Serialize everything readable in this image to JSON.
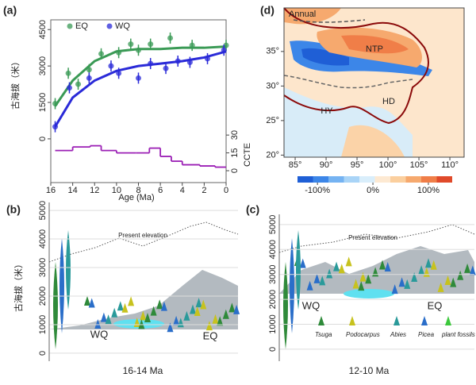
{
  "chart_data": {
    "type": "scatter",
    "panel": "(a)",
    "xlabel": "Age (Ma)",
    "ylabel": "古海拔（米）",
    "y2label": "CCTE",
    "xlim": [
      16,
      0
    ],
    "xticks": [
      16,
      14,
      12,
      10,
      8,
      6,
      4,
      2,
      0
    ],
    "ylim": [
      -1800,
      4900
    ],
    "yticks": [
      0,
      1500,
      3000,
      4500
    ],
    "y2lim": [
      -10,
      127
    ],
    "y2ticks": [
      0,
      15,
      30
    ],
    "series": [
      {
        "name": "EQ",
        "color": "#3a9a55",
        "x": [
          15.6,
          14.4,
          13.5,
          12.5,
          11.4,
          9.8,
          8.7,
          8,
          6.9,
          5.1,
          3.1,
          0
        ],
        "values": [
          1450,
          2700,
          2250,
          2850,
          3500,
          3550,
          3900,
          3650,
          3900,
          4150,
          3850,
          3850
        ],
        "fit": {
          "x": [
            15.6,
            14,
            12,
            10,
            8,
            6,
            4,
            2,
            0
          ],
          "values": [
            1350,
            2400,
            3200,
            3600,
            3700,
            3700,
            3750,
            3750,
            3800
          ]
        }
      },
      {
        "name": "WQ",
        "color": "#2a2ad8",
        "x": [
          15.6,
          14.3,
          12.5,
          10.5,
          9.8,
          8,
          6.9,
          5.5,
          4.4,
          3.3,
          1.7,
          0.2
        ],
        "values": [
          500,
          2100,
          2500,
          3000,
          2700,
          2500,
          3100,
          2900,
          3200,
          3150,
          3300,
          3650
        ],
        "fit": {
          "x": [
            15.6,
            14,
            12,
            10,
            8,
            6,
            4,
            2,
            0
          ],
          "values": [
            500,
            1700,
            2400,
            2800,
            3000,
            3100,
            3200,
            3350,
            3600
          ]
        }
      }
    ],
    "step": {
      "axis": "y2",
      "color": "#9b1fb5",
      "bins": [
        15.6,
        14,
        12.4,
        11.4,
        10,
        8.2,
        7,
        6,
        5,
        4,
        2.4,
        1,
        0
      ],
      "values": [
        17,
        20,
        21,
        17,
        15,
        15,
        19,
        12,
        8,
        5,
        4,
        3
      ]
    }
  },
  "map": {
    "label": "(d)",
    "title": "Annual",
    "regions": [
      "NTP",
      "HY",
      "HD"
    ],
    "xlim": [
      83.2,
      112.3
    ],
    "xticks": [
      {
        "value": 85,
        "label": "85°"
      },
      {
        "value": 90,
        "label": "90°"
      },
      {
        "value": 95,
        "label": "95°"
      },
      {
        "value": 100,
        "label": "100°"
      },
      {
        "value": 105,
        "label": "105°"
      },
      {
        "value": 110,
        "label": "110°"
      }
    ],
    "ylim": [
      19.7,
      41.3
    ],
    "yticks": [
      {
        "value": 20,
        "label": "20°"
      },
      {
        "value": 25,
        "label": "25°"
      },
      {
        "value": 30,
        "label": "30°"
      },
      {
        "value": 35,
        "label": "35°"
      }
    ],
    "colorbar": {
      "lim": [
        -136,
        143
      ],
      "colors": [
        "#1f5fd6",
        "#3c86e8",
        "#75b3f2",
        "#a9d4f7",
        "#d9eefb",
        "#fde9d2",
        "#fbcf9e",
        "#f6a96e",
        "#f07e48",
        "#e04a2a"
      ],
      "ticks": [
        {
          "value": -100,
          "label": "-100%"
        },
        {
          "value": 0,
          "label": "0%"
        },
        {
          "value": 100,
          "label": "100%"
        }
      ]
    }
  },
  "scenes": [
    {
      "label": "(b)",
      "ylabel": "古海拔（米）",
      "ylim": [
        -280,
        5280
      ],
      "yticks": [
        0,
        1000,
        2000,
        3000,
        4000,
        5000
      ],
      "line_label": "Present elevation",
      "left": "WQ",
      "right": "EQ",
      "time": "16-14 Ma"
    },
    {
      "label": "(c)",
      "ylim": [
        -480,
        5410
      ],
      "yticks": [
        0,
        1000,
        2000,
        3000,
        4000,
        5000
      ],
      "line_label": "Present elevation",
      "left": "WQ",
      "right": "EQ",
      "time": "12-10 Ma",
      "legend": [
        "Tsuga",
        "Podocarpus",
        "Abies",
        "Picea",
        "plant fossils"
      ]
    }
  ]
}
